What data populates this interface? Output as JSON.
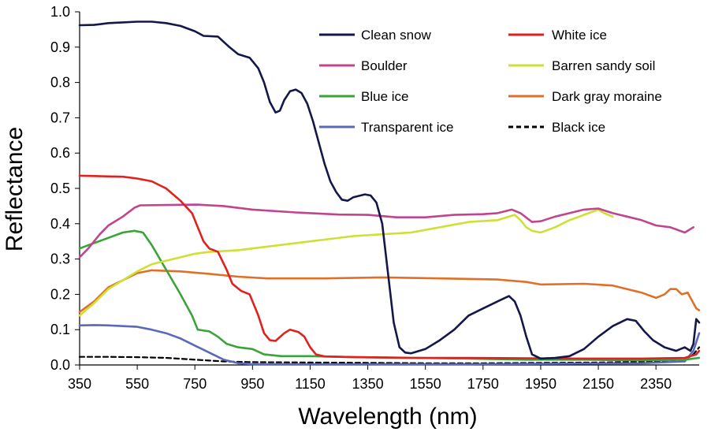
{
  "chart_data": {
    "type": "line",
    "title": "",
    "xlabel": "Wavelength (nm)",
    "ylabel": "Reflectance",
    "xlim": [
      350,
      2500
    ],
    "ylim": [
      0,
      1.0
    ],
    "x_ticks": [
      "350",
      "550",
      "750",
      "950",
      "1150",
      "1350",
      "1550",
      "1750",
      "1950",
      "2150",
      "2350"
    ],
    "y_ticks": [
      "0.0",
      "0.1",
      "0.2",
      "0.3",
      "0.4",
      "0.5",
      "0.6",
      "0.7",
      "0.8",
      "0.9",
      "1.0"
    ],
    "grid": false,
    "legend_position": "top-right",
    "series": [
      {
        "name": "Clean snow",
        "color": "#14174a",
        "dash": "solid",
        "points": [
          [
            350,
            0.962
          ],
          [
            400,
            0.963
          ],
          [
            450,
            0.968
          ],
          [
            500,
            0.97
          ],
          [
            550,
            0.972
          ],
          [
            600,
            0.972
          ],
          [
            650,
            0.968
          ],
          [
            700,
            0.96
          ],
          [
            750,
            0.945
          ],
          [
            780,
            0.932
          ],
          [
            830,
            0.93
          ],
          [
            870,
            0.9
          ],
          [
            900,
            0.88
          ],
          [
            940,
            0.87
          ],
          [
            970,
            0.84
          ],
          [
            990,
            0.8
          ],
          [
            1010,
            0.745
          ],
          [
            1030,
            0.715
          ],
          [
            1045,
            0.72
          ],
          [
            1060,
            0.75
          ],
          [
            1080,
            0.775
          ],
          [
            1100,
            0.78
          ],
          [
            1120,
            0.77
          ],
          [
            1140,
            0.74
          ],
          [
            1160,
            0.69
          ],
          [
            1180,
            0.63
          ],
          [
            1200,
            0.57
          ],
          [
            1220,
            0.52
          ],
          [
            1240,
            0.49
          ],
          [
            1260,
            0.468
          ],
          [
            1280,
            0.465
          ],
          [
            1300,
            0.475
          ],
          [
            1340,
            0.483
          ],
          [
            1360,
            0.48
          ],
          [
            1380,
            0.46
          ],
          [
            1400,
            0.4
          ],
          [
            1420,
            0.26
          ],
          [
            1440,
            0.12
          ],
          [
            1460,
            0.05
          ],
          [
            1480,
            0.035
          ],
          [
            1500,
            0.033
          ],
          [
            1550,
            0.045
          ],
          [
            1600,
            0.07
          ],
          [
            1650,
            0.1
          ],
          [
            1700,
            0.14
          ],
          [
            1750,
            0.16
          ],
          [
            1800,
            0.18
          ],
          [
            1840,
            0.195
          ],
          [
            1860,
            0.18
          ],
          [
            1880,
            0.14
          ],
          [
            1900,
            0.08
          ],
          [
            1920,
            0.03
          ],
          [
            1950,
            0.018
          ],
          [
            2000,
            0.02
          ],
          [
            2050,
            0.025
          ],
          [
            2100,
            0.045
          ],
          [
            2150,
            0.08
          ],
          [
            2200,
            0.11
          ],
          [
            2250,
            0.13
          ],
          [
            2280,
            0.125
          ],
          [
            2310,
            0.095
          ],
          [
            2340,
            0.07
          ],
          [
            2380,
            0.05
          ],
          [
            2420,
            0.04
          ],
          [
            2450,
            0.05
          ],
          [
            2470,
            0.04
          ],
          [
            2480,
            0.06
          ],
          [
            2490,
            0.13
          ],
          [
            2500,
            0.12
          ]
        ]
      },
      {
        "name": "White ice",
        "color": "#e0211d",
        "dash": "solid",
        "points": [
          [
            350,
            0.536
          ],
          [
            400,
            0.535
          ],
          [
            450,
            0.534
          ],
          [
            500,
            0.533
          ],
          [
            550,
            0.528
          ],
          [
            600,
            0.52
          ],
          [
            650,
            0.5
          ],
          [
            700,
            0.465
          ],
          [
            740,
            0.43
          ],
          [
            760,
            0.39
          ],
          [
            780,
            0.35
          ],
          [
            800,
            0.33
          ],
          [
            830,
            0.32
          ],
          [
            860,
            0.27
          ],
          [
            880,
            0.23
          ],
          [
            910,
            0.21
          ],
          [
            940,
            0.2
          ],
          [
            970,
            0.14
          ],
          [
            990,
            0.09
          ],
          [
            1010,
            0.07
          ],
          [
            1030,
            0.068
          ],
          [
            1060,
            0.09
          ],
          [
            1080,
            0.1
          ],
          [
            1110,
            0.093
          ],
          [
            1130,
            0.08
          ],
          [
            1150,
            0.05
          ],
          [
            1170,
            0.03
          ],
          [
            1200,
            0.024
          ],
          [
            1300,
            0.022
          ],
          [
            1500,
            0.02
          ],
          [
            1700,
            0.02
          ],
          [
            1900,
            0.019
          ],
          [
            2100,
            0.018
          ],
          [
            2300,
            0.018
          ],
          [
            2450,
            0.02
          ],
          [
            2490,
            0.03
          ],
          [
            2500,
            0.04
          ]
        ]
      },
      {
        "name": "Boulder",
        "color": "#c0458e",
        "dash": "solid",
        "points": [
          [
            350,
            0.305
          ],
          [
            380,
            0.33
          ],
          [
            420,
            0.37
          ],
          [
            450,
            0.395
          ],
          [
            500,
            0.42
          ],
          [
            540,
            0.445
          ],
          [
            560,
            0.452
          ],
          [
            650,
            0.453
          ],
          [
            760,
            0.454
          ],
          [
            850,
            0.45
          ],
          [
            950,
            0.44
          ],
          [
            1100,
            0.432
          ],
          [
            1250,
            0.426
          ],
          [
            1350,
            0.425
          ],
          [
            1450,
            0.418
          ],
          [
            1550,
            0.418
          ],
          [
            1650,
            0.425
          ],
          [
            1750,
            0.427
          ],
          [
            1800,
            0.43
          ],
          [
            1850,
            0.44
          ],
          [
            1880,
            0.43
          ],
          [
            1920,
            0.405
          ],
          [
            1950,
            0.407
          ],
          [
            2000,
            0.42
          ],
          [
            2050,
            0.43
          ],
          [
            2100,
            0.44
          ],
          [
            2150,
            0.443
          ],
          [
            2200,
            0.43
          ],
          [
            2250,
            0.42
          ],
          [
            2300,
            0.41
          ],
          [
            2350,
            0.395
          ],
          [
            2400,
            0.39
          ],
          [
            2450,
            0.375
          ],
          [
            2480,
            0.39
          ]
        ]
      },
      {
        "name": "Barren sandy soil",
        "color": "#cfe034",
        "dash": "solid",
        "points": [
          [
            350,
            0.14
          ],
          [
            400,
            0.175
          ],
          [
            450,
            0.215
          ],
          [
            500,
            0.24
          ],
          [
            550,
            0.265
          ],
          [
            600,
            0.285
          ],
          [
            650,
            0.295
          ],
          [
            700,
            0.305
          ],
          [
            750,
            0.315
          ],
          [
            800,
            0.32
          ],
          [
            900,
            0.325
          ],
          [
            1000,
            0.335
          ],
          [
            1100,
            0.345
          ],
          [
            1200,
            0.355
          ],
          [
            1300,
            0.365
          ],
          [
            1400,
            0.37
          ],
          [
            1500,
            0.375
          ],
          [
            1600,
            0.39
          ],
          [
            1700,
            0.405
          ],
          [
            1800,
            0.41
          ],
          [
            1840,
            0.42
          ],
          [
            1860,
            0.425
          ],
          [
            1880,
            0.41
          ],
          [
            1900,
            0.39
          ],
          [
            1920,
            0.38
          ],
          [
            1950,
            0.375
          ],
          [
            2000,
            0.39
          ],
          [
            2050,
            0.41
          ],
          [
            2100,
            0.425
          ],
          [
            2150,
            0.44
          ],
          [
            2170,
            0.43
          ],
          [
            2200,
            0.42
          ]
        ]
      },
      {
        "name": "Blue ice",
        "color": "#3aa339",
        "dash": "solid",
        "points": [
          [
            350,
            0.33
          ],
          [
            400,
            0.345
          ],
          [
            450,
            0.36
          ],
          [
            500,
            0.375
          ],
          [
            540,
            0.38
          ],
          [
            570,
            0.375
          ],
          [
            600,
            0.34
          ],
          [
            650,
            0.27
          ],
          [
            700,
            0.2
          ],
          [
            740,
            0.14
          ],
          [
            760,
            0.1
          ],
          [
            800,
            0.095
          ],
          [
            830,
            0.08
          ],
          [
            860,
            0.06
          ],
          [
            900,
            0.05
          ],
          [
            950,
            0.045
          ],
          [
            990,
            0.03
          ],
          [
            1050,
            0.025
          ],
          [
            1150,
            0.025
          ],
          [
            1300,
            0.022
          ],
          [
            1500,
            0.02
          ],
          [
            1700,
            0.018
          ],
          [
            1900,
            0.015
          ],
          [
            2100,
            0.015
          ],
          [
            2300,
            0.013
          ],
          [
            2450,
            0.015
          ],
          [
            2500,
            0.02
          ]
        ]
      },
      {
        "name": "Dark gray moraine",
        "color": "#e07028",
        "dash": "solid",
        "points": [
          [
            350,
            0.15
          ],
          [
            400,
            0.18
          ],
          [
            450,
            0.22
          ],
          [
            500,
            0.24
          ],
          [
            550,
            0.26
          ],
          [
            600,
            0.268
          ],
          [
            700,
            0.265
          ],
          [
            800,
            0.258
          ],
          [
            900,
            0.25
          ],
          [
            1000,
            0.245
          ],
          [
            1200,
            0.245
          ],
          [
            1400,
            0.248
          ],
          [
            1600,
            0.245
          ],
          [
            1800,
            0.242
          ],
          [
            1900,
            0.235
          ],
          [
            1950,
            0.228
          ],
          [
            2100,
            0.23
          ],
          [
            2200,
            0.225
          ],
          [
            2300,
            0.205
          ],
          [
            2350,
            0.19
          ],
          [
            2380,
            0.2
          ],
          [
            2400,
            0.215
          ],
          [
            2420,
            0.215
          ],
          [
            2440,
            0.2
          ],
          [
            2460,
            0.205
          ],
          [
            2480,
            0.175
          ],
          [
            2490,
            0.16
          ],
          [
            2500,
            0.155
          ]
        ]
      },
      {
        "name": "Transparent ice",
        "color": "#5a6ab8",
        "dash": "solid",
        "points": [
          [
            350,
            0.112
          ],
          [
            400,
            0.113
          ],
          [
            450,
            0.112
          ],
          [
            500,
            0.11
          ],
          [
            550,
            0.108
          ],
          [
            600,
            0.1
          ],
          [
            650,
            0.09
          ],
          [
            700,
            0.075
          ],
          [
            750,
            0.055
          ],
          [
            800,
            0.035
          ],
          [
            850,
            0.015
          ],
          [
            900,
            0.005
          ],
          [
            950,
            0.002
          ],
          [
            1100,
            0.002
          ],
          [
            1300,
            0.002
          ],
          [
            1500,
            0.002
          ],
          [
            1700,
            0.002
          ],
          [
            1900,
            0.003
          ],
          [
            2100,
            0.004
          ],
          [
            2300,
            0.005
          ],
          [
            2450,
            0.01
          ],
          [
            2480,
            0.04
          ],
          [
            2500,
            0.09
          ]
        ]
      },
      {
        "name": "Black ice",
        "color": "#000000",
        "dash": "dashed",
        "points": [
          [
            350,
            0.023
          ],
          [
            450,
            0.023
          ],
          [
            550,
            0.022
          ],
          [
            650,
            0.02
          ],
          [
            750,
            0.015
          ],
          [
            850,
            0.01
          ],
          [
            950,
            0.008
          ],
          [
            1150,
            0.007
          ],
          [
            1350,
            0.006
          ],
          [
            1550,
            0.005
          ],
          [
            1750,
            0.005
          ],
          [
            1950,
            0.006
          ],
          [
            2150,
            0.007
          ],
          [
            2350,
            0.01
          ],
          [
            2450,
            0.015
          ],
          [
            2480,
            0.03
          ],
          [
            2500,
            0.05
          ]
        ]
      }
    ]
  }
}
